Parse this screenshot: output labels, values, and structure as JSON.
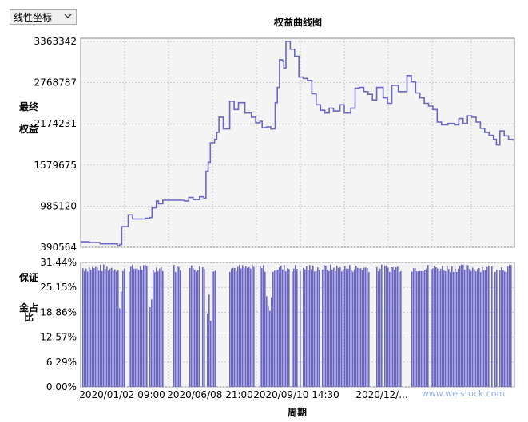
{
  "toolbar": {
    "scale_select_value": "线性坐标"
  },
  "colors": {
    "series": "#6b67c4",
    "plot_bg": "#f4f4f4",
    "grid": "#c8c8c8"
  },
  "chart_data": [
    {
      "type": "line",
      "title": "权益曲线图",
      "ylabel": "最终权益",
      "y_ticks": [
        "3363342",
        "2768787",
        "2174231",
        "1579675",
        "985120",
        "390564"
      ],
      "ylim": [
        390564,
        3363342
      ],
      "grid": true,
      "series": [
        {
          "values": [
            [
              0.0,
              470000
            ],
            [
              0.02,
              460000
            ],
            [
              0.045,
              440000
            ],
            [
              0.085,
              410000
            ],
            [
              0.09,
              430000
            ],
            [
              0.095,
              690000
            ],
            [
              0.11,
              860000
            ],
            [
              0.12,
              800000
            ],
            [
              0.15,
              810000
            ],
            [
              0.16,
              820000
            ],
            [
              0.165,
              960000
            ],
            [
              0.175,
              1060000
            ],
            [
              0.18,
              1020000
            ],
            [
              0.19,
              1070000
            ],
            [
              0.22,
              1070000
            ],
            [
              0.24,
              1060000
            ],
            [
              0.25,
              1110000
            ],
            [
              0.26,
              1080000
            ],
            [
              0.275,
              1120000
            ],
            [
              0.285,
              1100000
            ],
            [
              0.29,
              1490000
            ],
            [
              0.295,
              1620000
            ],
            [
              0.3,
              1900000
            ],
            [
              0.31,
              1950000
            ],
            [
              0.315,
              2050000
            ],
            [
              0.32,
              2270000
            ],
            [
              0.33,
              2100000
            ],
            [
              0.345,
              2500000
            ],
            [
              0.355,
              2380000
            ],
            [
              0.365,
              2480000
            ],
            [
              0.38,
              2330000
            ],
            [
              0.395,
              2270000
            ],
            [
              0.405,
              2190000
            ],
            [
              0.415,
              2210000
            ],
            [
              0.42,
              2120000
            ],
            [
              0.43,
              2130000
            ],
            [
              0.44,
              2100000
            ],
            [
              0.45,
              2480000
            ],
            [
              0.455,
              2700000
            ],
            [
              0.46,
              3100000
            ],
            [
              0.467,
              3080000
            ],
            [
              0.47,
              2980000
            ],
            [
              0.475,
              3363342
            ],
            [
              0.485,
              3250000
            ],
            [
              0.495,
              3150000
            ],
            [
              0.505,
              2850000
            ],
            [
              0.515,
              2830000
            ],
            [
              0.525,
              2800000
            ],
            [
              0.535,
              2610000
            ],
            [
              0.545,
              2450000
            ],
            [
              0.555,
              2370000
            ],
            [
              0.565,
              2330000
            ],
            [
              0.575,
              2400000
            ],
            [
              0.585,
              2360000
            ],
            [
              0.6,
              2450000
            ],
            [
              0.61,
              2330000
            ],
            [
              0.625,
              2400000
            ],
            [
              0.635,
              2690000
            ],
            [
              0.645,
              2700000
            ],
            [
              0.655,
              2640000
            ],
            [
              0.665,
              2600000
            ],
            [
              0.675,
              2520000
            ],
            [
              0.685,
              2700000
            ],
            [
              0.7,
              2550000
            ],
            [
              0.71,
              2470000
            ],
            [
              0.72,
              2730000
            ],
            [
              0.735,
              2640000
            ],
            [
              0.745,
              2640000
            ],
            [
              0.755,
              2870000
            ],
            [
              0.765,
              2780000
            ],
            [
              0.775,
              2620000
            ],
            [
              0.785,
              2550000
            ],
            [
              0.795,
              2470000
            ],
            [
              0.805,
              2430000
            ],
            [
              0.815,
              2380000
            ],
            [
              0.825,
              2200000
            ],
            [
              0.835,
              2160000
            ],
            [
              0.85,
              2180000
            ],
            [
              0.865,
              2160000
            ],
            [
              0.875,
              2250000
            ],
            [
              0.885,
              2180000
            ],
            [
              0.895,
              2290000
            ],
            [
              0.905,
              2270000
            ],
            [
              0.915,
              2200000
            ],
            [
              0.925,
              2110000
            ],
            [
              0.935,
              2050000
            ],
            [
              0.945,
              2010000
            ],
            [
              0.955,
              1950000
            ],
            [
              0.962,
              1870000
            ],
            [
              0.97,
              2070000
            ],
            [
              0.98,
              2000000
            ],
            [
              0.99,
              1950000
            ],
            [
              1.0,
              1930000
            ]
          ]
        }
      ]
    },
    {
      "type": "bar",
      "ylabel": "保证金占比",
      "xlabel": "周期",
      "x_ticks": [
        "2020/01/02 09:00",
        "2020/06/08 21:00",
        "2020/09/10 14:30",
        "2020/12/..."
      ],
      "y_ticks": [
        "31.44%",
        "25.15%",
        "18.86%",
        "12.57%",
        "6.29%",
        "0.00%"
      ],
      "ylim": [
        0,
        31.44
      ],
      "grid": true
    }
  ],
  "watermark": "www.weistock.com"
}
